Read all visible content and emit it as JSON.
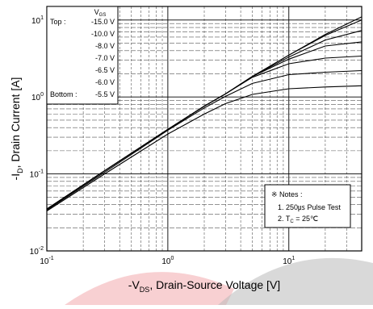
{
  "chart_data": {
    "type": "line",
    "title": "",
    "xlabel": "-V_DS, Drain-Source Voltage [V]",
    "ylabel": "-I_D, Drain Current [A]",
    "xlabel_parts": {
      "pre": "-V",
      "sub": "DS",
      "post": ", Drain-Source Voltage [V]"
    },
    "ylabel_parts": {
      "pre": "-I",
      "sub": "D",
      "post": ", Drain Current [A]"
    },
    "x_scale": "log",
    "y_scale": "log",
    "xlim": [
      0.1,
      40
    ],
    "ylim": [
      0.01,
      15
    ],
    "x_ticks": [
      {
        "value": 0.1,
        "base": "10",
        "exp": "-1"
      },
      {
        "value": 1,
        "base": "10",
        "exp": "0"
      },
      {
        "value": 10,
        "base": "10",
        "exp": "1"
      }
    ],
    "y_ticks": [
      {
        "value": 0.01,
        "base": "10",
        "exp": "-2"
      },
      {
        "value": 0.1,
        "base": "10",
        "exp": "-1"
      },
      {
        "value": 1,
        "base": "10",
        "exp": "0"
      },
      {
        "value": 10,
        "base": "10",
        "exp": "1"
      }
    ],
    "grid": true,
    "legend": {
      "header_pre": "V",
      "header_sub": "GS",
      "position": "top-left",
      "rows": [
        {
          "prefix": "Top :",
          "label": "-15.0 V"
        },
        {
          "prefix": "",
          "label": "-10.0 V"
        },
        {
          "prefix": "",
          "label": "-8.0 V"
        },
        {
          "prefix": "",
          "label": "-7.0 V"
        },
        {
          "prefix": "",
          "label": "-6.5 V"
        },
        {
          "prefix": "",
          "label": "-6.0 V"
        },
        {
          "prefix": "Bottom :",
          "label": "-5.5 V"
        }
      ]
    },
    "notes": {
      "title": "※ Notes :",
      "line1": "1. 250㎲ Pulse Test",
      "line2_pre": "2. T",
      "line2_sub": "C",
      "line2_post": " = 25℃"
    },
    "series": [
      {
        "name": "-15.0 V",
        "x": [
          0.1,
          0.3,
          1,
          2,
          3,
          5,
          10,
          20,
          40
        ],
        "y": [
          0.035,
          0.11,
          0.38,
          0.76,
          1.1,
          1.85,
          3.5,
          6.5,
          11
        ]
      },
      {
        "name": "-10.0 V",
        "x": [
          0.1,
          0.3,
          1,
          2,
          3,
          5,
          10,
          20,
          40
        ],
        "y": [
          0.035,
          0.11,
          0.38,
          0.76,
          1.1,
          1.85,
          3.5,
          6.3,
          10
        ]
      },
      {
        "name": "-8.0 V",
        "x": [
          0.1,
          0.3,
          1,
          2,
          3,
          5,
          10,
          20,
          40
        ],
        "y": [
          0.035,
          0.11,
          0.38,
          0.76,
          1.1,
          1.85,
          3.3,
          5.5,
          7.3
        ]
      },
      {
        "name": "-7.0 V",
        "x": [
          0.1,
          0.3,
          1,
          2,
          3,
          5,
          10,
          20,
          40
        ],
        "y": [
          0.035,
          0.11,
          0.38,
          0.76,
          1.1,
          1.85,
          3.1,
          4.6,
          5.2
        ]
      },
      {
        "name": "-6.5 V",
        "x": [
          0.1,
          0.3,
          1,
          2,
          3,
          5,
          10,
          20,
          40
        ],
        "y": [
          0.035,
          0.11,
          0.38,
          0.76,
          1.1,
          1.8,
          2.7,
          3.2,
          3.4
        ]
      },
      {
        "name": "-6.0 V",
        "x": [
          0.1,
          0.3,
          1,
          2,
          3,
          5,
          10,
          20,
          40
        ],
        "y": [
          0.034,
          0.105,
          0.37,
          0.72,
          1.02,
          1.5,
          1.95,
          2.1,
          2.2
        ]
      },
      {
        "name": "-5.5 V",
        "x": [
          0.1,
          0.3,
          1,
          2,
          3,
          5,
          10,
          20,
          40
        ],
        "y": [
          0.033,
          0.1,
          0.33,
          0.6,
          0.82,
          1.08,
          1.28,
          1.35,
          1.4
        ]
      }
    ]
  }
}
